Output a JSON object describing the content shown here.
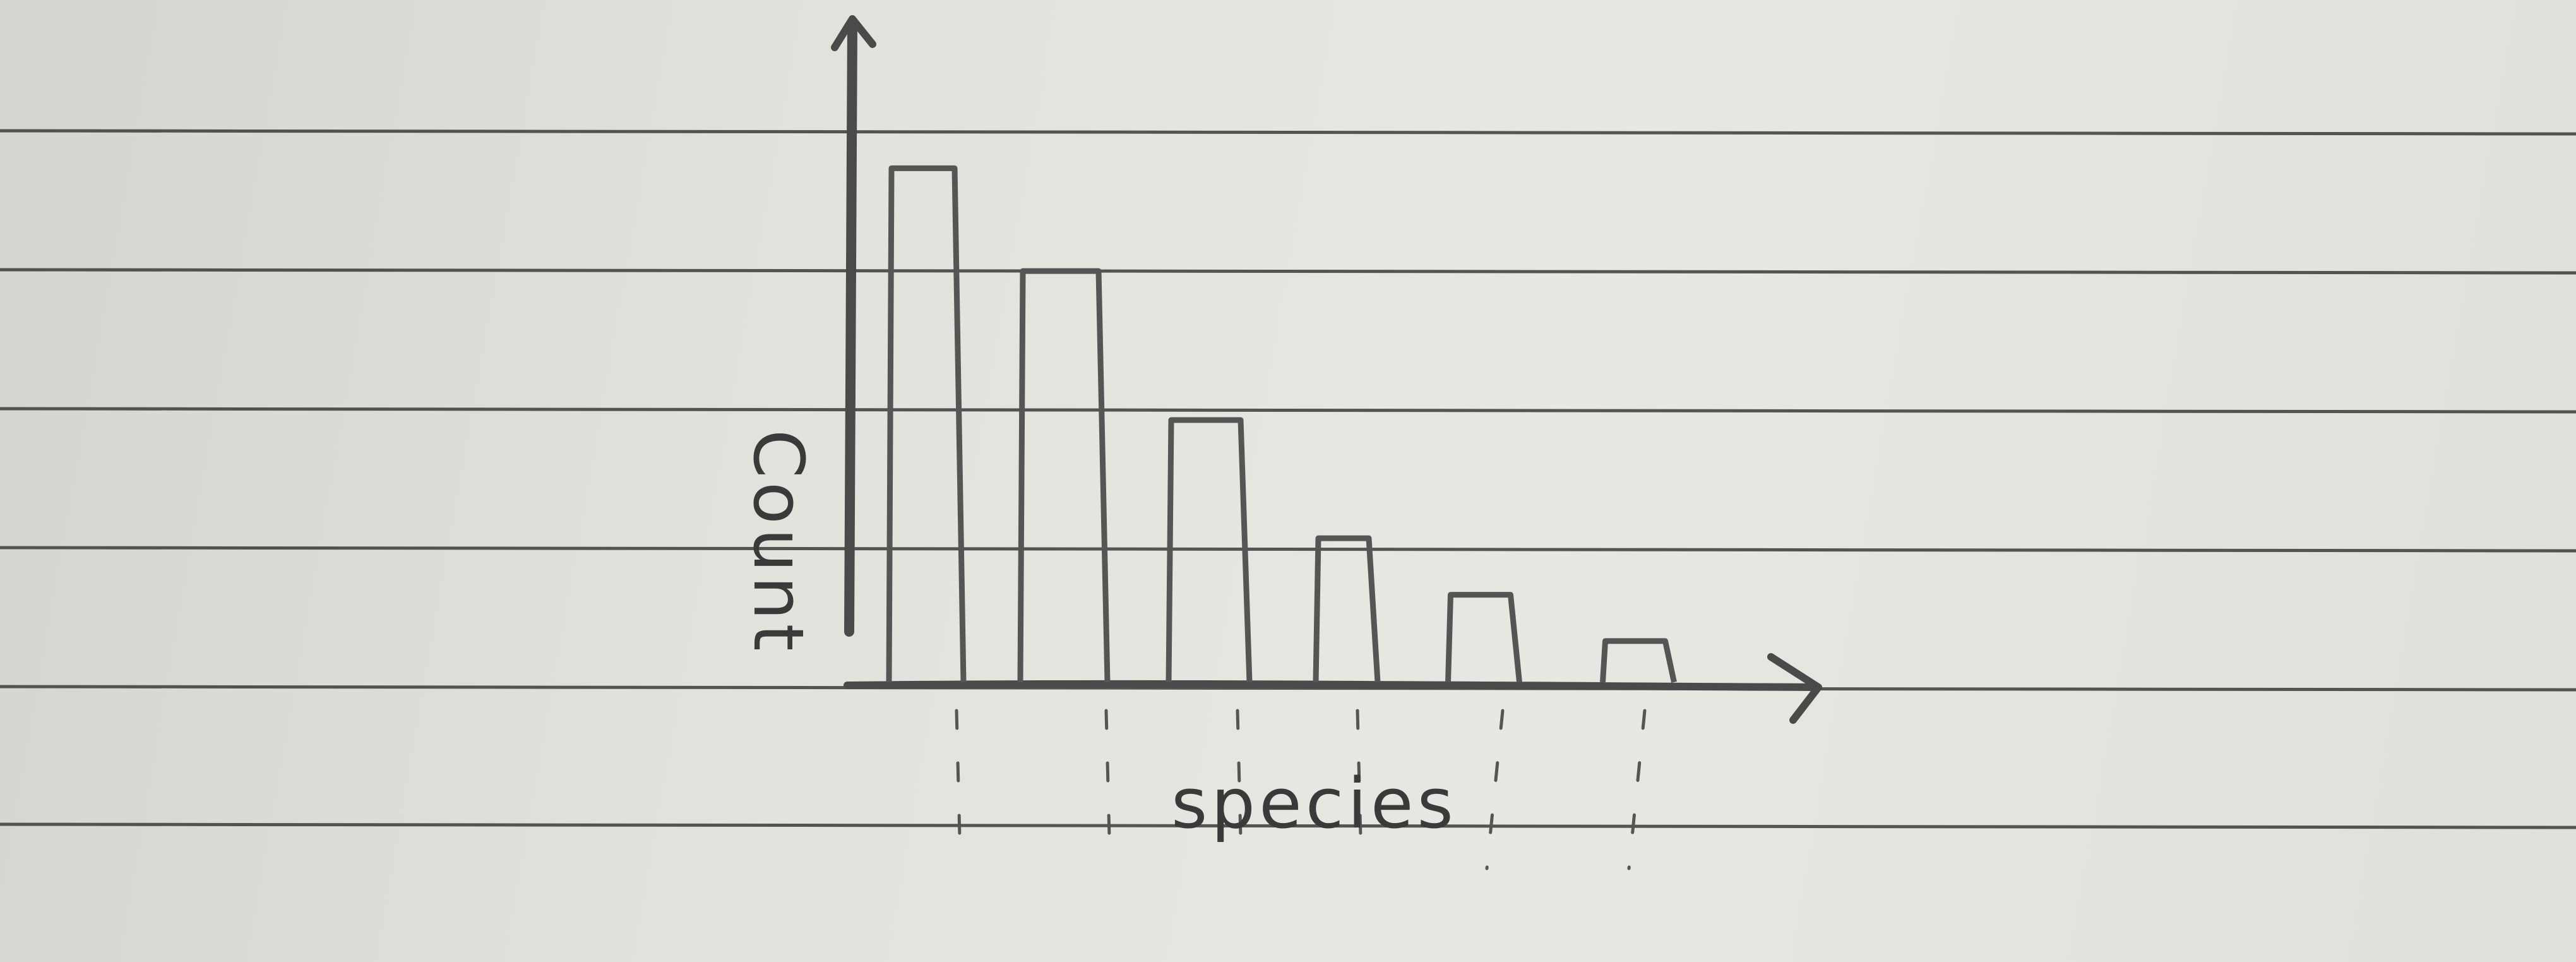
{
  "chart_data": {
    "type": "bar",
    "title": "",
    "xlabel": "species",
    "ylabel": "Count",
    "categories": [
      "",
      "",
      "",
      "",
      "",
      ""
    ],
    "values": [
      100,
      80,
      51,
      28,
      17,
      8
    ],
    "ylim": [
      0,
      110
    ],
    "grid": false,
    "legend": "none"
  },
  "colors": {
    "paper": "#e6e4df",
    "ruled_line": "#3b3b3b",
    "pencil": "#4a4a4a"
  }
}
